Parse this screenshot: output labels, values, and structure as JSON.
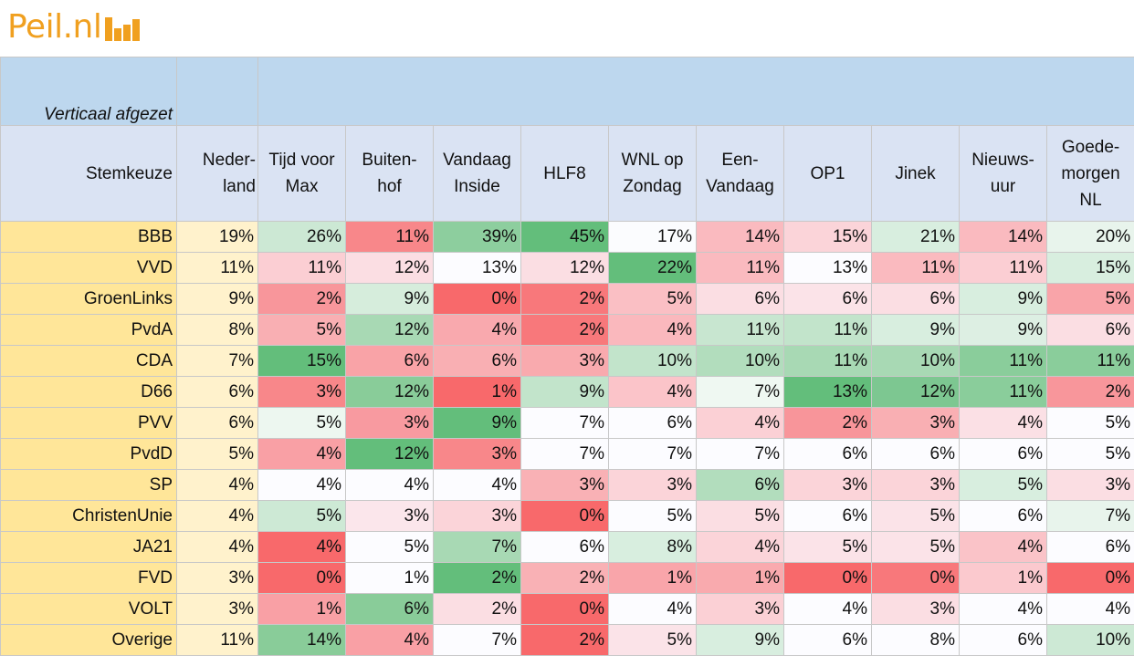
{
  "logo": {
    "text": "Peil.nl"
  },
  "table": {
    "note": "Verticaal afgezet",
    "row_header": "Stemkeuze",
    "columns": [
      [
        "Neder-",
        "land"
      ],
      [
        "Tijd voor",
        "Max"
      ],
      [
        "Buiten-",
        "hof"
      ],
      [
        "Vandaag",
        "Inside"
      ],
      [
        "HLF8"
      ],
      [
        "WNL op",
        "Zondag"
      ],
      [
        "Een-",
        "Vandaag"
      ],
      [
        "OP1"
      ],
      [
        "Jinek"
      ],
      [
        "Nieuws-",
        "uur"
      ],
      [
        "Goede-",
        "morgen",
        "NL"
      ]
    ],
    "rows": [
      {
        "party": "BBB",
        "values": [
          "19%",
          "26%",
          "11%",
          "39%",
          "45%",
          "17%",
          "14%",
          "15%",
          "21%",
          "14%",
          "20%"
        ],
        "colors": [
          "",
          "#CCE8D4",
          "#F8878A",
          "#8DCE9E",
          "#63BE7B",
          "#FBFCFE",
          "#FABABF",
          "#FBD4D9",
          "#D8EEDF",
          "#FABABF",
          "#E8F4EC"
        ]
      },
      {
        "party": "VVD",
        "values": [
          "11%",
          "11%",
          "12%",
          "13%",
          "12%",
          "22%",
          "11%",
          "13%",
          "11%",
          "11%",
          "15%"
        ],
        "colors": [
          "",
          "#FBCED3",
          "#FBDEE3",
          "#FCFCFF",
          "#FBDEE3",
          "#63BE7B",
          "#FABABF",
          "#FCFCFF",
          "#FABABF",
          "#FBCED3",
          "#D8EEDF"
        ]
      },
      {
        "party": "GroenLinks",
        "values": [
          "9%",
          "2%",
          "9%",
          "0%",
          "2%",
          "5%",
          "6%",
          "6%",
          "6%",
          "9%",
          "5%"
        ],
        "colors": [
          "",
          "#F8969B",
          "#D6EDDC",
          "#F8696B",
          "#F8787B",
          "#FABFC4",
          "#FBDEE3",
          "#FBE3E8",
          "#FBDEE3",
          "#D8EEDF",
          "#F9A4A9"
        ]
      },
      {
        "party": "PvdA",
        "values": [
          "8%",
          "5%",
          "12%",
          "4%",
          "2%",
          "4%",
          "11%",
          "11%",
          "9%",
          "9%",
          "6%"
        ],
        "colors": [
          "",
          "#F9AFB3",
          "#A8D9B4",
          "#F9A9AE",
          "#F8787B",
          "#FAB8BD",
          "#C8E6D0",
          "#C2E4CB",
          "#D8EEDF",
          "#DDEFE3",
          "#FBDEE3"
        ]
      },
      {
        "party": "CDA",
        "values": [
          "7%",
          "15%",
          "6%",
          "6%",
          "3%",
          "10%",
          "10%",
          "11%",
          "10%",
          "11%",
          "11%"
        ],
        "colors": [
          "",
          "#63BE7B",
          "#F9A3A7",
          "#F9AFB3",
          "#F9AAAE",
          "#C2E4CB",
          "#B2DDBD",
          "#A8D9B4",
          "#A8D9B4",
          "#8ACD9B",
          "#8ACD9B"
        ]
      },
      {
        "party": "D66",
        "values": [
          "6%",
          "3%",
          "12%",
          "1%",
          "9%",
          "4%",
          "7%",
          "13%",
          "12%",
          "11%",
          "2%"
        ],
        "colors": [
          "",
          "#F8878A",
          "#89CC99",
          "#F8696B",
          "#C2E4CB",
          "#FBC4C9",
          "#EFF8F2",
          "#63BE7B",
          "#7DC791",
          "#8ACD9B",
          "#F8969B"
        ]
      },
      {
        "party": "PVV",
        "values": [
          "6%",
          "5%",
          "3%",
          "9%",
          "7%",
          "6%",
          "4%",
          "2%",
          "3%",
          "4%",
          "5%"
        ],
        "colors": [
          "",
          "#EDF7F0",
          "#F89AA0",
          "#63BE7B",
          "#FCFCFF",
          "#FCFCFF",
          "#FBD0D5",
          "#F8959A",
          "#F9AFB3",
          "#FBE0E5",
          "#FCFCFF"
        ]
      },
      {
        "party": "PvdD",
        "values": [
          "5%",
          "4%",
          "12%",
          "3%",
          "7%",
          "7%",
          "7%",
          "6%",
          "6%",
          "6%",
          "5%"
        ],
        "colors": [
          "",
          "#F9A0A5",
          "#63BE7B",
          "#F8878A",
          "#FCFCFF",
          "#FCFCFF",
          "#FCFCFF",
          "#FCFCFF",
          "#FCFCFF",
          "#FCFCFF",
          "#FCFCFF"
        ]
      },
      {
        "party": "SP",
        "values": [
          "4%",
          "4%",
          "4%",
          "4%",
          "3%",
          "3%",
          "6%",
          "3%",
          "3%",
          "5%",
          "3%"
        ],
        "colors": [
          "",
          "#FCFCFF",
          "#FCFCFF",
          "#FCFCFF",
          "#F9B1B5",
          "#FBD4D9",
          "#B2DDBD",
          "#FBD4D9",
          "#FBD4D9",
          "#D8EEDF",
          "#FBDEE3"
        ]
      },
      {
        "party": "ChristenUnie",
        "values": [
          "4%",
          "5%",
          "3%",
          "3%",
          "0%",
          "5%",
          "5%",
          "6%",
          "5%",
          "6%",
          "7%"
        ],
        "colors": [
          "",
          "#CDE9D5",
          "#FBE6EB",
          "#FBD4D9",
          "#F8696B",
          "#FCFCFF",
          "#FBDEE3",
          "#FCFCFF",
          "#FBE3E8",
          "#FCFCFF",
          "#E8F4EC"
        ]
      },
      {
        "party": "JA21",
        "values": [
          "4%",
          "4%",
          "5%",
          "7%",
          "6%",
          "8%",
          "4%",
          "5%",
          "5%",
          "4%",
          "6%"
        ],
        "colors": [
          "",
          "#F8696B",
          "#FCFCFF",
          "#A8D9B4",
          "#FCFCFF",
          "#D8EEDF",
          "#FBD4D9",
          "#FBE3E8",
          "#FBE3E8",
          "#FAC3C8",
          "#FCFCFF"
        ]
      },
      {
        "party": "FVD",
        "values": [
          "3%",
          "0%",
          "1%",
          "2%",
          "2%",
          "1%",
          "1%",
          "0%",
          "0%",
          "1%",
          "0%"
        ],
        "colors": [
          "",
          "#F8696B",
          "#FCFCFF",
          "#63BE7B",
          "#F9B1B5",
          "#F9A5AA",
          "#F9AAAE",
          "#F8696B",
          "#F8787B",
          "#FBC9CE",
          "#F8696B"
        ]
      },
      {
        "party": "VOLT",
        "values": [
          "3%",
          "1%",
          "6%",
          "2%",
          "0%",
          "4%",
          "3%",
          "4%",
          "3%",
          "4%",
          "4%"
        ],
        "colors": [
          "",
          "#F9A0A5",
          "#89CC99",
          "#FBDEE3",
          "#F8696B",
          "#FCFCFF",
          "#FBD0D5",
          "#FCFCFF",
          "#FBDEE3",
          "#FCFCFF",
          "#FCFCFF"
        ]
      },
      {
        "party": "Overige",
        "values": [
          "11%",
          "14%",
          "4%",
          "7%",
          "2%",
          "5%",
          "9%",
          "6%",
          "8%",
          "6%",
          "10%"
        ],
        "colors": [
          "",
          "#89CC99",
          "#F9A0A5",
          "#FCFCFF",
          "#F8696B",
          "#FBE3E8",
          "#D8EEDF",
          "#FCFCFF",
          "#FCFCFF",
          "#FCFCFF",
          "#CDE9D5"
        ]
      }
    ]
  }
}
